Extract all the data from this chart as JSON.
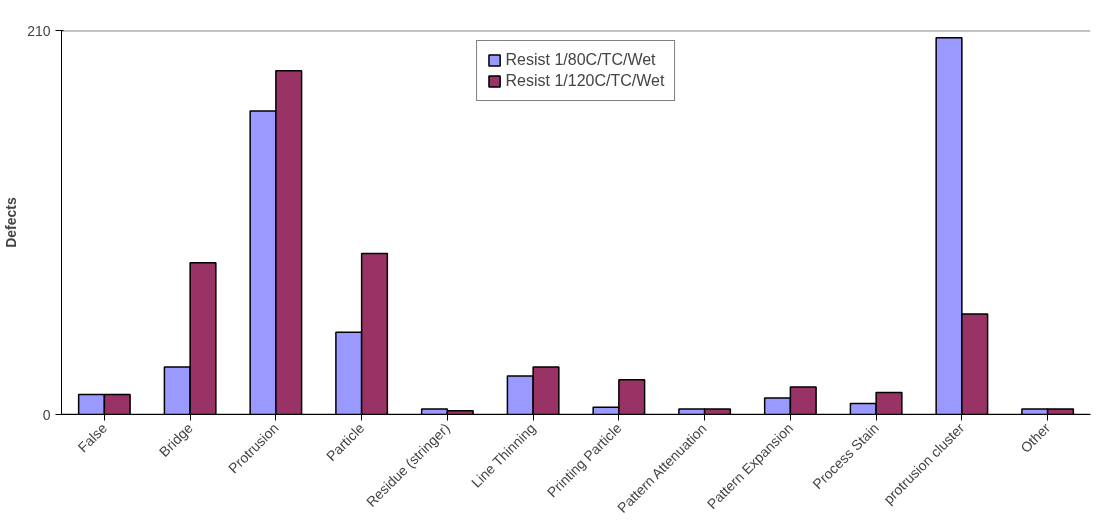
{
  "chart_data": {
    "type": "bar",
    "ylabel": "Defects",
    "categories": [
      "False",
      "Bridge",
      "Protrusion",
      "Particle",
      "Residue (stringer)",
      "Line Thinning",
      "Printing Particle",
      "Pattern Attenuation",
      "Pattern Expansion",
      "Process Stain",
      "protrusion cluster",
      "Other"
    ],
    "series": [
      {
        "name": "Resist 1/80C/TC/Wet",
        "color": "#9999ff",
        "values": [
          11,
          26,
          166,
          45,
          3,
          21,
          4,
          3,
          9,
          6,
          206,
          3
        ]
      },
      {
        "name": "Resist 1/120C/TC/Wet",
        "color": "#993366",
        "values": [
          11,
          83,
          188,
          88,
          2,
          26,
          19,
          3,
          15,
          12,
          55,
          3
        ]
      }
    ],
    "ylim": [
      0,
      210
    ],
    "yticks": [
      0,
      210
    ],
    "grid": "y",
    "legend": "top"
  }
}
